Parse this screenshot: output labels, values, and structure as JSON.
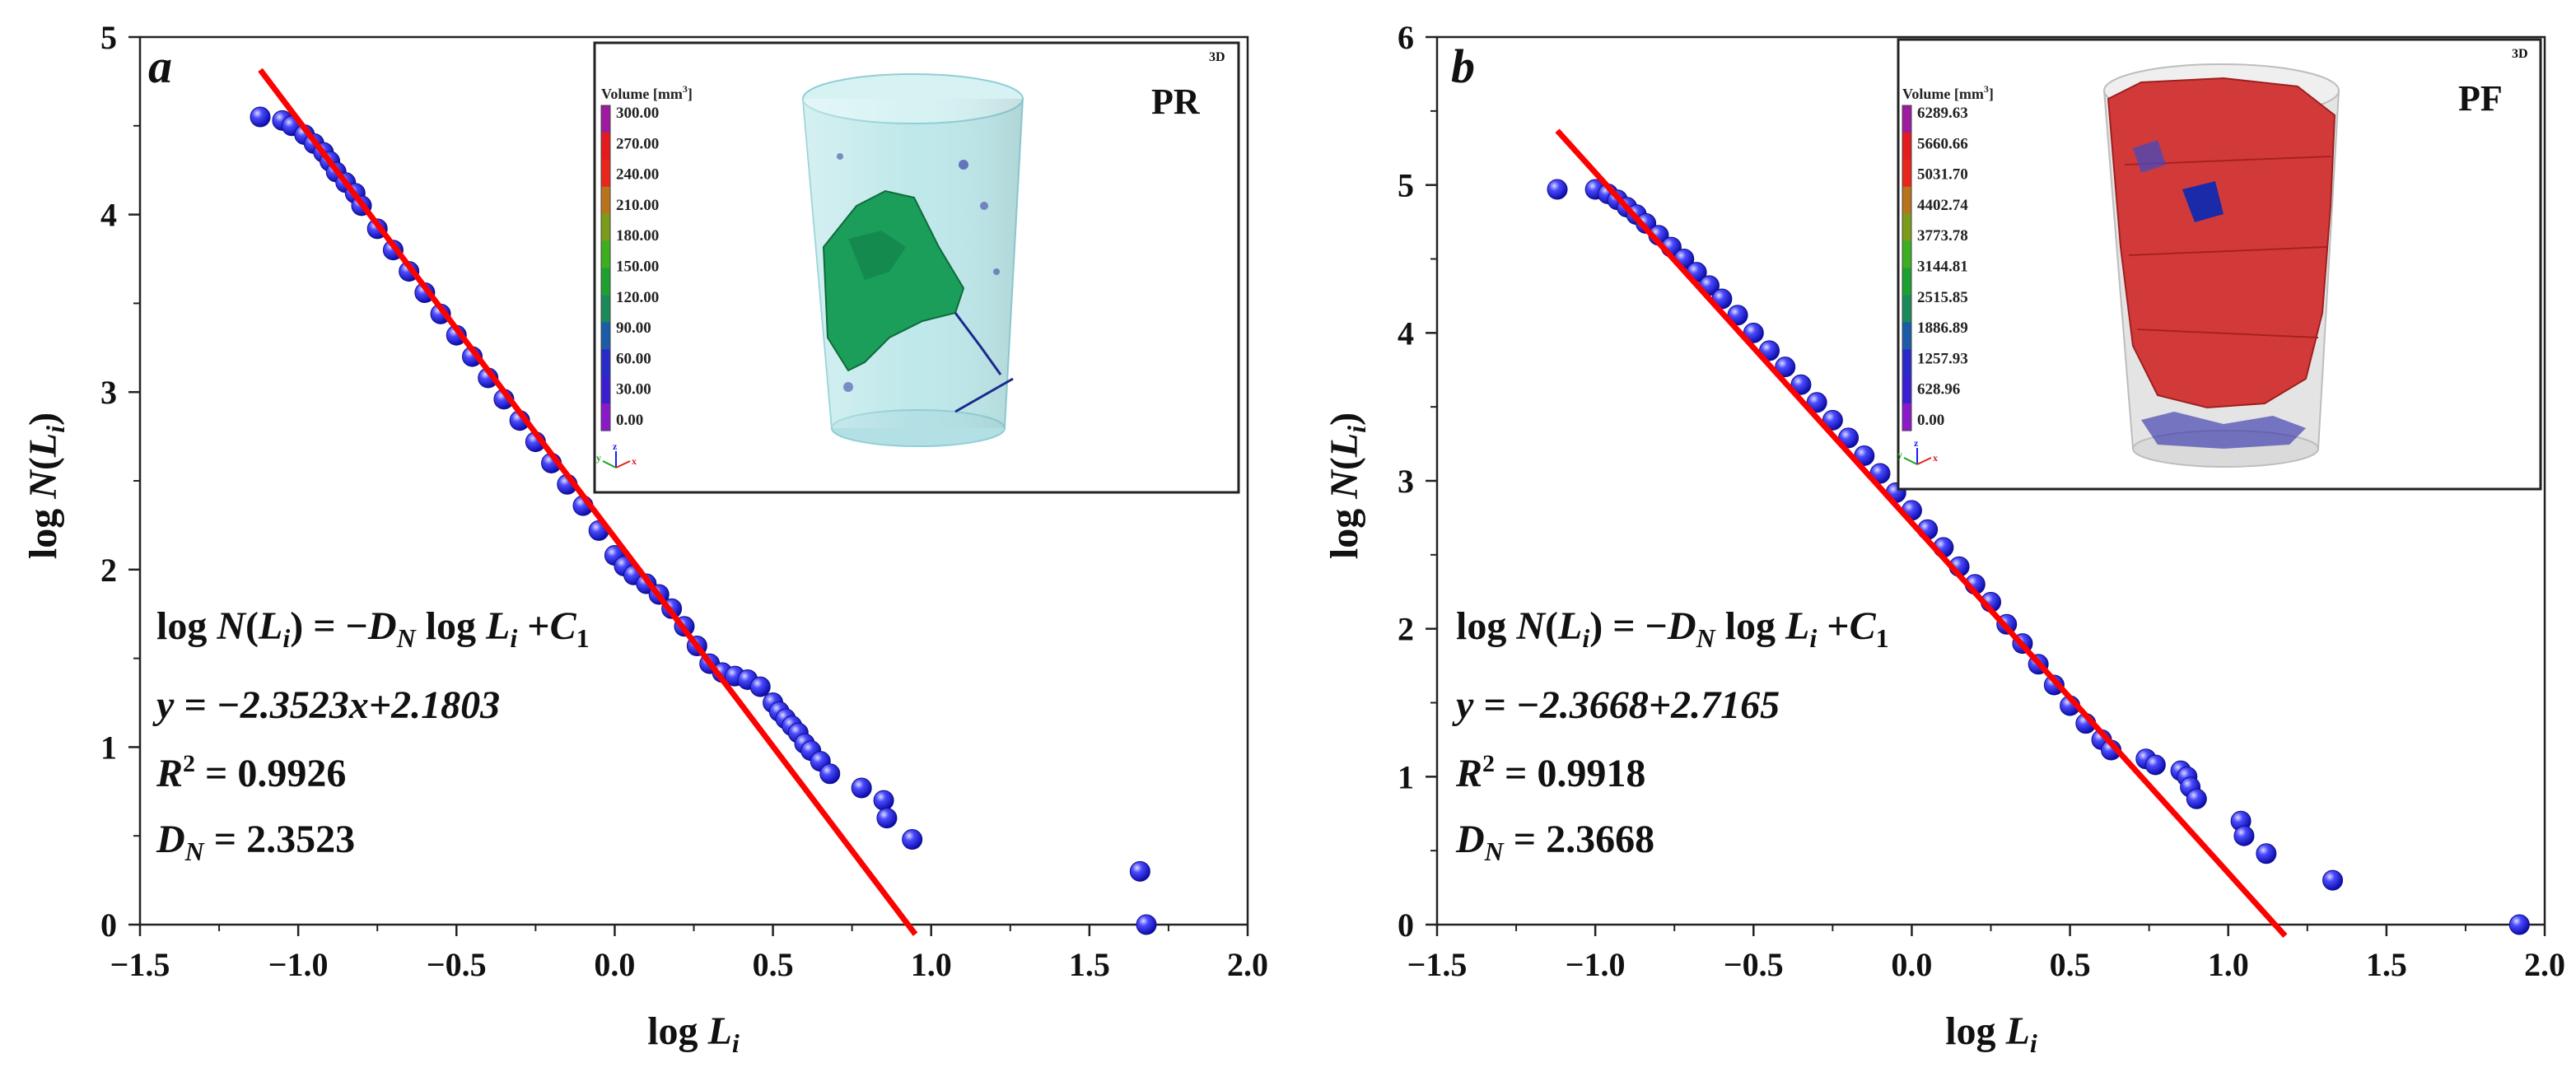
{
  "chart_data": [
    {
      "type": "scatter",
      "panel_label": "a",
      "xlabel": "log L_i",
      "ylabel": "log N(L_i)",
      "xlim": [
        -1.5,
        2.0
      ],
      "ylim": [
        0,
        5
      ],
      "xticks": [
        "−1.5",
        "−1.0",
        "−0.5",
        "0.0",
        "0.5",
        "1.0",
        "1.5",
        "2.0"
      ],
      "yticks": [
        "0",
        "1",
        "2",
        "3",
        "4",
        "5"
      ],
      "equation": {
        "general_lhs": "log N(L",
        "general_rhs_1": ") = −D",
        "general_rhs_2": " log L",
        "general_rhs_3": " +C",
        "fit": "y = −2.3523x+2.1803",
        "r2_value": " = 0.9926",
        "dn_value": " = 2.3523"
      },
      "fit_line": {
        "slope": -2.3523,
        "intercept": 2.1803,
        "x_range": [
          -1.12,
          0.95
        ],
        "color": "#ff0000"
      },
      "series": [
        {
          "name": "",
          "color": "#2020e0",
          "x": [
            -1.12,
            -1.05,
            -1.02,
            -0.98,
            -0.95,
            -0.92,
            -0.9,
            -0.88,
            -0.85,
            -0.82,
            -0.8,
            -0.75,
            -0.7,
            -0.65,
            -0.6,
            -0.55,
            -0.5,
            -0.45,
            -0.4,
            -0.35,
            -0.3,
            -0.25,
            -0.2,
            -0.15,
            -0.1,
            -0.05,
            0.0,
            0.03,
            0.06,
            0.1,
            0.14,
            0.18,
            0.22,
            0.26,
            0.3,
            0.34,
            0.38,
            0.42,
            0.46,
            0.5,
            0.52,
            0.54,
            0.56,
            0.58,
            0.6,
            0.62,
            0.65,
            0.68,
            0.78,
            0.85,
            0.86,
            0.94,
            1.66,
            1.68
          ],
          "y": [
            4.55,
            4.53,
            4.5,
            4.45,
            4.4,
            4.35,
            4.3,
            4.24,
            4.18,
            4.12,
            4.05,
            3.92,
            3.8,
            3.68,
            3.56,
            3.44,
            3.32,
            3.2,
            3.08,
            2.96,
            2.84,
            2.72,
            2.6,
            2.48,
            2.36,
            2.22,
            2.08,
            2.02,
            1.97,
            1.92,
            1.86,
            1.78,
            1.68,
            1.57,
            1.47,
            1.42,
            1.4,
            1.38,
            1.34,
            1.25,
            1.2,
            1.16,
            1.12,
            1.08,
            1.02,
            0.98,
            0.92,
            0.85,
            0.77,
            0.7,
            0.6,
            0.48,
            0.3,
            0.0
          ]
        }
      ],
      "inset": {
        "label": "PR",
        "tag_3d": "3D",
        "legend_title": "Volume [mm",
        "legend_title_sup": "3",
        "legend_title_end": "]",
        "legend_values": [
          "300.00",
          "270.00",
          "240.00",
          "210.00",
          "180.00",
          "150.00",
          "120.00",
          "90.00",
          "60.00",
          "30.00",
          "0.00"
        ],
        "colorbar": [
          "#9e1a9e",
          "#e41a1c",
          "#e8261c",
          "#b8741c",
          "#7a9c1a",
          "#3dae20",
          "#1ea030",
          "#1a8a5a",
          "#1a5ca6",
          "#2a2ac8",
          "#3a1fd0",
          "#8a1ac8"
        ],
        "body_color": "#bfe8ea",
        "body_edge": "#8fcfd6",
        "fracture_color": "#1a9e5a"
      }
    },
    {
      "type": "scatter",
      "panel_label": "b",
      "xlabel": "log L_i",
      "ylabel": "log N(L_i)",
      "xlim": [
        -1.5,
        2.0
      ],
      "ylim": [
        0,
        6
      ],
      "xticks": [
        "−1.5",
        "−1.0",
        "−0.5",
        "0.0",
        "0.5",
        "1.0",
        "1.5",
        "2.0"
      ],
      "yticks": [
        "0",
        "1",
        "2",
        "3",
        "4",
        "5",
        "6"
      ],
      "equation": {
        "general_lhs": "log N(L",
        "general_rhs_1": ") = −D",
        "general_rhs_2": " log L",
        "general_rhs_3": " +C",
        "fit": "y = −2.3668+2.7165",
        "r2_value": " = 0.9918",
        "dn_value": " = 2.3668"
      },
      "fit_line": {
        "slope": -2.3668,
        "intercept": 2.7165,
        "x_range": [
          -1.12,
          1.18
        ],
        "color": "#ff0000"
      },
      "series": [
        {
          "name": "",
          "color": "#2020e0",
          "x": [
            -1.12,
            -1.0,
            -0.96,
            -0.93,
            -0.9,
            -0.87,
            -0.84,
            -0.8,
            -0.76,
            -0.72,
            -0.68,
            -0.64,
            -0.6,
            -0.55,
            -0.5,
            -0.45,
            -0.4,
            -0.35,
            -0.3,
            -0.25,
            -0.2,
            -0.15,
            -0.1,
            -0.05,
            0.0,
            0.05,
            0.1,
            0.15,
            0.2,
            0.25,
            0.3,
            0.35,
            0.4,
            0.45,
            0.5,
            0.55,
            0.6,
            0.63,
            0.74,
            0.77,
            0.85,
            0.87,
            0.88,
            0.9,
            1.04,
            1.05,
            1.12,
            1.33,
            1.92
          ],
          "y": [
            4.97,
            4.97,
            4.94,
            4.9,
            4.85,
            4.8,
            4.74,
            4.66,
            4.58,
            4.5,
            4.41,
            4.32,
            4.23,
            4.12,
            4.0,
            3.88,
            3.77,
            3.65,
            3.53,
            3.41,
            3.29,
            3.17,
            3.05,
            2.92,
            2.8,
            2.67,
            2.55,
            2.42,
            2.3,
            2.18,
            2.03,
            1.9,
            1.76,
            1.62,
            1.48,
            1.36,
            1.25,
            1.18,
            1.12,
            1.08,
            1.04,
            1.0,
            0.93,
            0.85,
            0.7,
            0.6,
            0.48,
            0.3,
            0.0
          ]
        }
      ],
      "inset": {
        "label": "PF",
        "tag_3d": "3D",
        "legend_title": "Volume [mm",
        "legend_title_sup": "3",
        "legend_title_end": "]",
        "legend_values": [
          "6289.63",
          "5660.66",
          "5031.70",
          "4402.74",
          "3773.78",
          "3144.81",
          "2515.85",
          "1886.89",
          "1257.93",
          "628.96",
          "0.00"
        ],
        "colorbar": [
          "#9e1a9e",
          "#e41a1c",
          "#e8261c",
          "#b8741c",
          "#7a9c1a",
          "#3dae20",
          "#1ea030",
          "#1a8a5a",
          "#1a5ca6",
          "#2a2ac8",
          "#3a1fd0",
          "#8a1ac8"
        ],
        "body_color": "#e4e4e4",
        "body_edge": "#bdbdbd",
        "fracture_color": "#d23a3a"
      }
    }
  ]
}
